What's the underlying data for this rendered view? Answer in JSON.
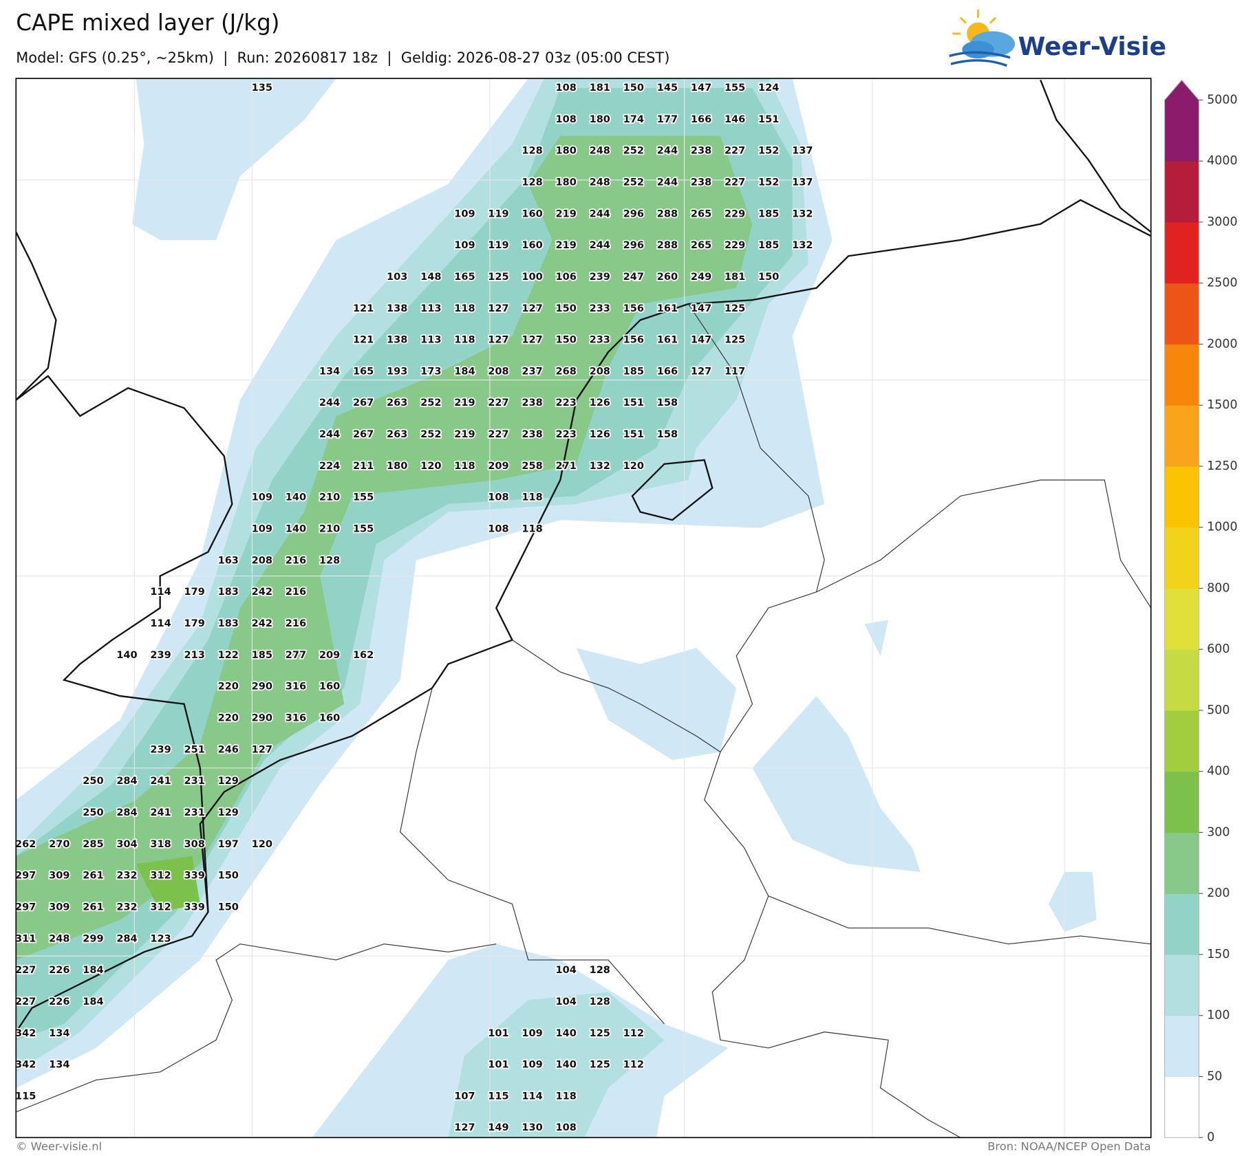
{
  "header": {
    "title": "CAPE mixed layer (J/kg)",
    "subtitle": "Model: GFS (0.25°, ~25km)  |  Run: 20260817 18z  |  Geldig: 2026-08-27 03z (05:00 CEST)"
  },
  "logo": "Weer-Visie",
  "colorbar": {
    "levels": [
      0,
      50,
      100,
      150,
      200,
      300,
      400,
      500,
      600,
      800,
      1000,
      1250,
      1500,
      2000,
      2500,
      3000,
      4000,
      5000
    ],
    "colors": [
      "#ffffff",
      "#d0e7f6",
      "#b2dfdf",
      "#93d3c7",
      "#88c98a",
      "#7bc14c",
      "#a2cd3f",
      "#c5da43",
      "#dfe03a",
      "#f2d31b",
      "#fbc400",
      "#f9a41a",
      "#f7870b",
      "#ec5517",
      "#e02320",
      "#b51e3b",
      "#8b1b6b"
    ]
  },
  "grid_labels": [
    [
      null,
      null,
      null,
      null,
      null,
      null,
      null,
      135,
      null,
      null,
      null,
      null,
      null,
      null,
      null,
      null,
      108,
      181,
      150,
      145,
      147,
      155,
      124
    ],
    [
      null,
      null,
      null,
      null,
      null,
      null,
      null,
      null,
      null,
      null,
      null,
      null,
      null,
      null,
      null,
      null,
      108,
      180,
      174,
      177,
      166,
      146,
      151
    ],
    [
      null,
      null,
      null,
      null,
      null,
      null,
      null,
      null,
      null,
      null,
      null,
      null,
      null,
      null,
      null,
      128,
      180,
      248,
      252,
      244,
      238,
      227,
      152,
      137
    ],
    [
      null,
      null,
      null,
      null,
      null,
      null,
      null,
      null,
      null,
      null,
      null,
      null,
      null,
      null,
      null,
      128,
      180,
      248,
      252,
      244,
      238,
      227,
      152,
      137
    ],
    [
      null,
      null,
      null,
      null,
      null,
      null,
      null,
      null,
      null,
      null,
      null,
      null,
      null,
      109,
      119,
      160,
      219,
      244,
      296,
      288,
      265,
      229,
      185,
      132
    ],
    [
      null,
      null,
      null,
      null,
      null,
      null,
      null,
      null,
      null,
      null,
      null,
      null,
      null,
      109,
      119,
      160,
      219,
      244,
      296,
      288,
      265,
      229,
      185,
      132
    ],
    [
      null,
      null,
      null,
      null,
      null,
      null,
      null,
      null,
      null,
      null,
      null,
      103,
      148,
      165,
      125,
      100,
      106,
      239,
      247,
      260,
      249,
      181,
      150
    ],
    [
      null,
      null,
      null,
      null,
      null,
      null,
      null,
      null,
      null,
      null,
      121,
      138,
      113,
      118,
      127,
      127,
      150,
      233,
      156,
      161,
      147,
      125
    ],
    [
      null,
      null,
      null,
      null,
      null,
      null,
      null,
      null,
      null,
      null,
      121,
      138,
      113,
      118,
      127,
      127,
      150,
      233,
      156,
      161,
      147,
      125
    ],
    [
      null,
      null,
      null,
      null,
      null,
      null,
      null,
      null,
      null,
      134,
      165,
      193,
      173,
      184,
      208,
      237,
      268,
      208,
      185,
      166,
      127,
      117
    ],
    [
      null,
      null,
      null,
      null,
      null,
      null,
      null,
      null,
      null,
      244,
      267,
      263,
      252,
      219,
      227,
      238,
      223,
      126,
      151,
      158
    ],
    [
      null,
      null,
      null,
      null,
      null,
      null,
      null,
      null,
      null,
      244,
      267,
      263,
      252,
      219,
      227,
      238,
      223,
      126,
      151,
      158
    ],
    [
      null,
      null,
      null,
      null,
      null,
      null,
      null,
      null,
      null,
      224,
      211,
      180,
      120,
      118,
      209,
      258,
      271,
      132,
      120
    ],
    [
      null,
      null,
      null,
      null,
      null,
      null,
      null,
      109,
      140,
      210,
      155,
      null,
      null,
      null,
      108,
      118
    ],
    [
      null,
      null,
      null,
      null,
      null,
      null,
      null,
      109,
      140,
      210,
      155,
      null,
      null,
      null,
      108,
      118
    ],
    [
      null,
      null,
      null,
      null,
      null,
      null,
      163,
      208,
      216,
      128
    ],
    [
      null,
      null,
      null,
      null,
      114,
      179,
      183,
      242,
      216
    ],
    [
      null,
      null,
      null,
      null,
      114,
      179,
      183,
      242,
      216
    ],
    [
      null,
      null,
      null,
      140,
      239,
      213,
      122,
      185,
      277,
      209,
      162
    ],
    [
      null,
      null,
      null,
      null,
      null,
      null,
      220,
      290,
      316,
      160
    ],
    [
      null,
      null,
      null,
      null,
      null,
      null,
      220,
      290,
      316,
      160
    ],
    [
      null,
      null,
      null,
      null,
      239,
      251,
      246,
      127
    ],
    [
      null,
      null,
      250,
      284,
      241,
      231,
      129
    ],
    [
      null,
      null,
      250,
      284,
      241,
      231,
      129
    ],
    [
      262,
      270,
      285,
      304,
      318,
      308,
      197,
      120
    ],
    [
      297,
      309,
      261,
      232,
      312,
      339,
      150
    ],
    [
      297,
      309,
      261,
      232,
      312,
      339,
      150
    ],
    [
      311,
      248,
      299,
      284,
      123
    ],
    [
      227,
      226,
      184,
      null,
      null,
      null,
      null,
      null,
      null,
      null,
      null,
      null,
      null,
      null,
      null,
      null,
      104,
      128
    ],
    [
      227,
      226,
      184,
      null,
      null,
      null,
      null,
      null,
      null,
      null,
      null,
      null,
      null,
      null,
      null,
      null,
      104,
      128
    ],
    [
      342,
      134,
      null,
      null,
      null,
      null,
      null,
      null,
      null,
      null,
      null,
      null,
      null,
      null,
      101,
      109,
      140,
      125,
      112
    ],
    [
      342,
      134,
      null,
      null,
      null,
      null,
      null,
      null,
      null,
      null,
      null,
      null,
      null,
      null,
      101,
      109,
      140,
      125,
      112
    ],
    [
      115,
      null,
      null,
      null,
      null,
      null,
      null,
      null,
      null,
      null,
      null,
      null,
      null,
      107,
      115,
      114,
      118
    ],
    [
      null,
      null,
      null,
      null,
      null,
      null,
      null,
      null,
      null,
      null,
      null,
      null,
      null,
      127,
      149,
      130,
      108
    ]
  ],
  "footer": {
    "left": "© Weer-visie.nl",
    "right": "Bron: NOAA/NCEP Open Data"
  }
}
